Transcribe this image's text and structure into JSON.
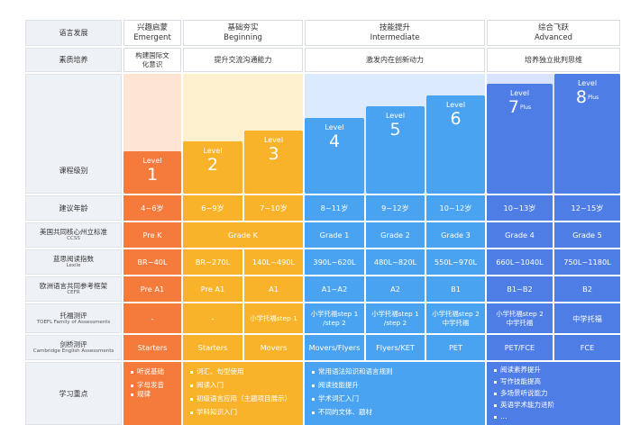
{
  "row_labels": {
    "language": "语言发展",
    "literacy": "素质培养",
    "course_level": "课程级别",
    "age": "建议年龄",
    "ccss": {
      "zh": "美国共同核心州立标准",
      "en": "CCSS"
    },
    "lexile": {
      "zh": "蓝思阅读指数",
      "en": "Lexile"
    },
    "cefr": {
      "zh": "欧洲语言共同参考框架",
      "en": "CEFR"
    },
    "toefl": {
      "zh": "托福测评",
      "en": "TOEFL Family of Assessments"
    },
    "cambridge": {
      "zh": "剑桥测评",
      "en": "Cambridge English Assessments"
    },
    "focus": "学习重点"
  },
  "stages": [
    {
      "zh": "兴趣启蒙",
      "en": "Emergent"
    },
    {
      "zh": "基础夯实",
      "en": "Beginning"
    },
    {
      "zh": "技能提升",
      "en": "Intermediate"
    },
    {
      "zh": "综合飞跃",
      "en": "Advanced"
    }
  ],
  "literacy_goals": [
    "构建国际文化意识",
    "提升交流沟通能力",
    "激发内在创新动力",
    "培养独立批判思维"
  ],
  "level_word": "Level",
  "plus_word": "Plus",
  "levels": [
    "1",
    "2",
    "3",
    "4",
    "5",
    "6",
    "7",
    "8"
  ],
  "ages": [
    "4~6岁",
    "6~9岁",
    "7~10岁",
    "8~11岁",
    "9~12岁",
    "10~12岁",
    "10~13岁",
    "12~15岁"
  ],
  "ccss": [
    "Pre K",
    "Grade K",
    "Grade 1",
    "Grade 2",
    "Grade 3",
    "Grade 4",
    "Grade 5"
  ],
  "lexile": [
    "BR~40L",
    "BR~270L",
    "140L~490L",
    "390L~620L",
    "480L~820L",
    "550L~970L",
    "660L~1040L",
    "750L~1180L"
  ],
  "cefr": [
    "Pre A1",
    "Pre A1",
    "A1",
    "A1~A2",
    "A2",
    "B1",
    "B1~B2",
    "B2"
  ],
  "toefl": [
    "-",
    "-",
    "小学托福step 1",
    "小学托福step 1\n/step 2",
    "小学托福step 1\n/step 2",
    "小学托福step 2\n中学托福",
    "小学托福step 2\n中学托福",
    "中学托福"
  ],
  "cambridge": [
    "Starters",
    "Starters",
    "Movers",
    "Movers/Flyers",
    "Flyers/KET",
    "PET",
    "PET/FCE",
    "FCE"
  ],
  "focus": {
    "emergent": [
      "听说基础",
      "字母发音",
      "规律"
    ],
    "beginning": [
      "词汇、句型使用",
      "阅读入门",
      "初级语言应用（主题项目展示）",
      "学科知识入门"
    ],
    "intermediate": [
      "常用语法知识和语言规则",
      "阅读技能提升",
      "学术词汇入门",
      "不同的文体、题材"
    ],
    "advanced": [
      "阅读素养提升",
      "写作技能提高",
      "多场景听说能力",
      "英语学术能力进阶",
      "…"
    ]
  },
  "colors": {
    "emergent": "#f47b3c",
    "beginning": "#f9b32a",
    "intermediate": "#4aa3f0",
    "advanced": "#4f7de6"
  }
}
